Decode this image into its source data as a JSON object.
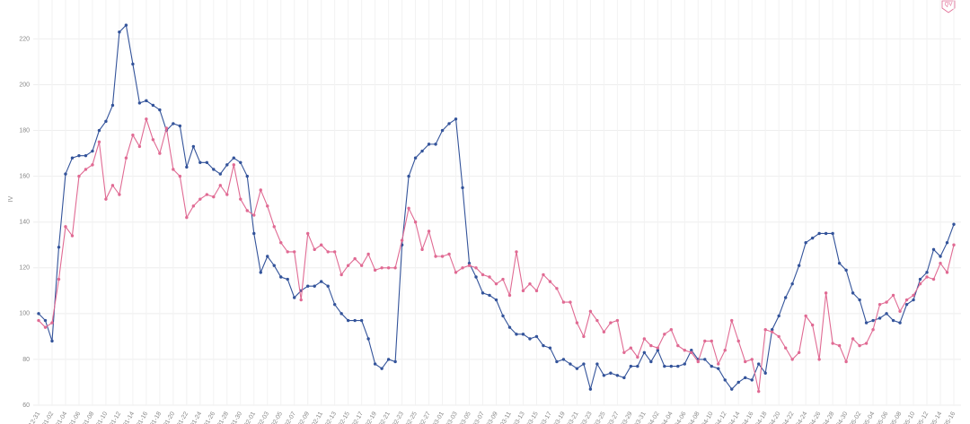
{
  "logo": "QV",
  "chart_data": {
    "type": "line",
    "y_label": "IV",
    "categories": [
      "12-31",
      null,
      "01-02",
      null,
      "01-04",
      null,
      "01-06",
      null,
      "01-08",
      null,
      "01-10",
      null,
      "01-12",
      null,
      "01-14",
      null,
      "01-16",
      null,
      "01-18",
      null,
      "01-20",
      null,
      "01-22",
      null,
      "01-24",
      null,
      "01-26",
      null,
      "01-28",
      null,
      "01-30",
      null,
      "02-01",
      null,
      "02-03",
      null,
      "02-05",
      null,
      "02-07",
      null,
      "02-09",
      null,
      "02-11",
      null,
      "02-13",
      null,
      "02-15",
      null,
      "02-17",
      null,
      "02-19",
      null,
      "02-21",
      null,
      "02-23",
      null,
      "02-25",
      null,
      "02-27",
      null,
      "03-01",
      null,
      "03-03",
      null,
      "03-05",
      null,
      "03-07",
      null,
      "03-09",
      null,
      "03-11",
      null,
      "03-13",
      null,
      "03-15",
      null,
      "03-17",
      null,
      "03-19",
      null,
      "03-21",
      null,
      "03-23",
      null,
      "03-25",
      null,
      "03-27",
      null,
      "03-29",
      null,
      "03-31",
      null,
      "04-02",
      null,
      "04-04",
      null,
      "04-06",
      null,
      "04-08",
      null,
      "04-10",
      null,
      "04-12",
      null,
      "04-14",
      null,
      "04-16",
      null,
      "04-18",
      null,
      "04-20",
      null,
      "04-22",
      null,
      "04-24",
      null,
      "04-26",
      null,
      "04-28",
      null,
      "04-30",
      null,
      "05-02",
      null,
      "05-04",
      null,
      "05-06",
      null,
      "05-08",
      null,
      "05-10",
      null,
      "05-12",
      null,
      "05-14",
      null,
      "05-16"
    ],
    "series": [
      {
        "color": "#33539a",
        "values": [
          100,
          97,
          88,
          129,
          161,
          168,
          169,
          169,
          171,
          180,
          184,
          191,
          223,
          226,
          209,
          192,
          193,
          191,
          189,
          180,
          183,
          182,
          164,
          173,
          166,
          166,
          163,
          161,
          165,
          168,
          166,
          160,
          135,
          118,
          125,
          121,
          116,
          115,
          107,
          110,
          112,
          112,
          114,
          112,
          104,
          100,
          97,
          97,
          97,
          89,
          78,
          76,
          80,
          79,
          130,
          160,
          168,
          171,
          174,
          174,
          180,
          183,
          185,
          155,
          122,
          116,
          109,
          108,
          106,
          99,
          94,
          91,
          91,
          89,
          90,
          86,
          85,
          79,
          80,
          78,
          76,
          78,
          67,
          78,
          73,
          74,
          73,
          72,
          77,
          77,
          83,
          79,
          84,
          77,
          77,
          77,
          78,
          84,
          80,
          80,
          77,
          76,
          71,
          67,
          70,
          72,
          71,
          78,
          74,
          93,
          99,
          107,
          113,
          121,
          131,
          133,
          135,
          135,
          135,
          122,
          119,
          109,
          106,
          96,
          97,
          98,
          100,
          97,
          96,
          104,
          106,
          115,
          118,
          128,
          125,
          131,
          139
        ]
      },
      {
        "color": "#e06a93",
        "values": [
          97,
          94,
          96,
          115,
          138,
          134,
          160,
          163,
          165,
          175,
          150,
          156,
          152,
          168,
          178,
          173,
          185,
          176,
          170,
          181,
          163,
          160,
          142,
          147,
          150,
          152,
          151,
          156,
          152,
          165,
          150,
          145,
          143,
          154,
          147,
          138,
          131,
          127,
          127,
          106,
          135,
          128,
          130,
          127,
          127,
          117,
          121,
          124,
          121,
          126,
          119,
          120,
          120,
          120,
          132,
          146,
          140,
          128,
          136,
          125,
          125,
          126,
          118,
          120,
          121,
          120,
          117,
          116,
          113,
          115,
          108,
          127,
          110,
          113,
          110,
          117,
          114,
          111,
          105,
          105,
          96,
          90,
          101,
          97,
          92,
          96,
          97,
          83,
          85,
          81,
          89,
          86,
          85,
          91,
          93,
          86,
          84,
          83,
          79,
          88,
          88,
          78,
          84,
          97,
          88,
          79,
          80,
          66,
          93,
          92,
          90,
          85,
          80,
          83,
          99,
          95,
          80,
          109,
          87,
          86,
          79,
          89,
          86,
          87,
          93,
          104,
          105,
          108,
          101,
          106,
          108,
          113,
          116,
          115,
          122,
          118,
          130
        ]
      }
    ],
    "ylim": [
      60,
      237
    ],
    "yticks": [
      60,
      80,
      100,
      120,
      140,
      160,
      180,
      200,
      220
    ],
    "grid": true
  }
}
